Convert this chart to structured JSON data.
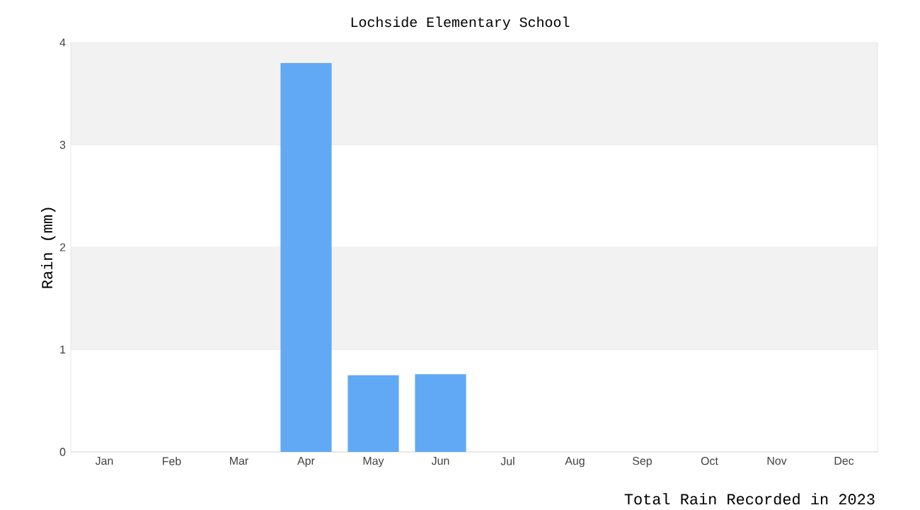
{
  "chart_data": {
    "type": "bar",
    "title": "Lochside Elementary School",
    "xlabel": "Total Rain Recorded in 2023",
    "ylabel": "Rain (mm)",
    "categories": [
      "Jan",
      "Feb",
      "Mar",
      "Apr",
      "May",
      "Jun",
      "Jul",
      "Aug",
      "Sep",
      "Oct",
      "Nov",
      "Dec"
    ],
    "values": [
      0,
      0,
      0,
      3.8,
      0.75,
      0.76,
      0,
      0,
      0,
      0,
      0,
      0
    ],
    "color": "#61a9f5",
    "ylim": [
      0,
      4
    ],
    "yticks": [
      0,
      1,
      2,
      3,
      4
    ],
    "grid": "y"
  }
}
